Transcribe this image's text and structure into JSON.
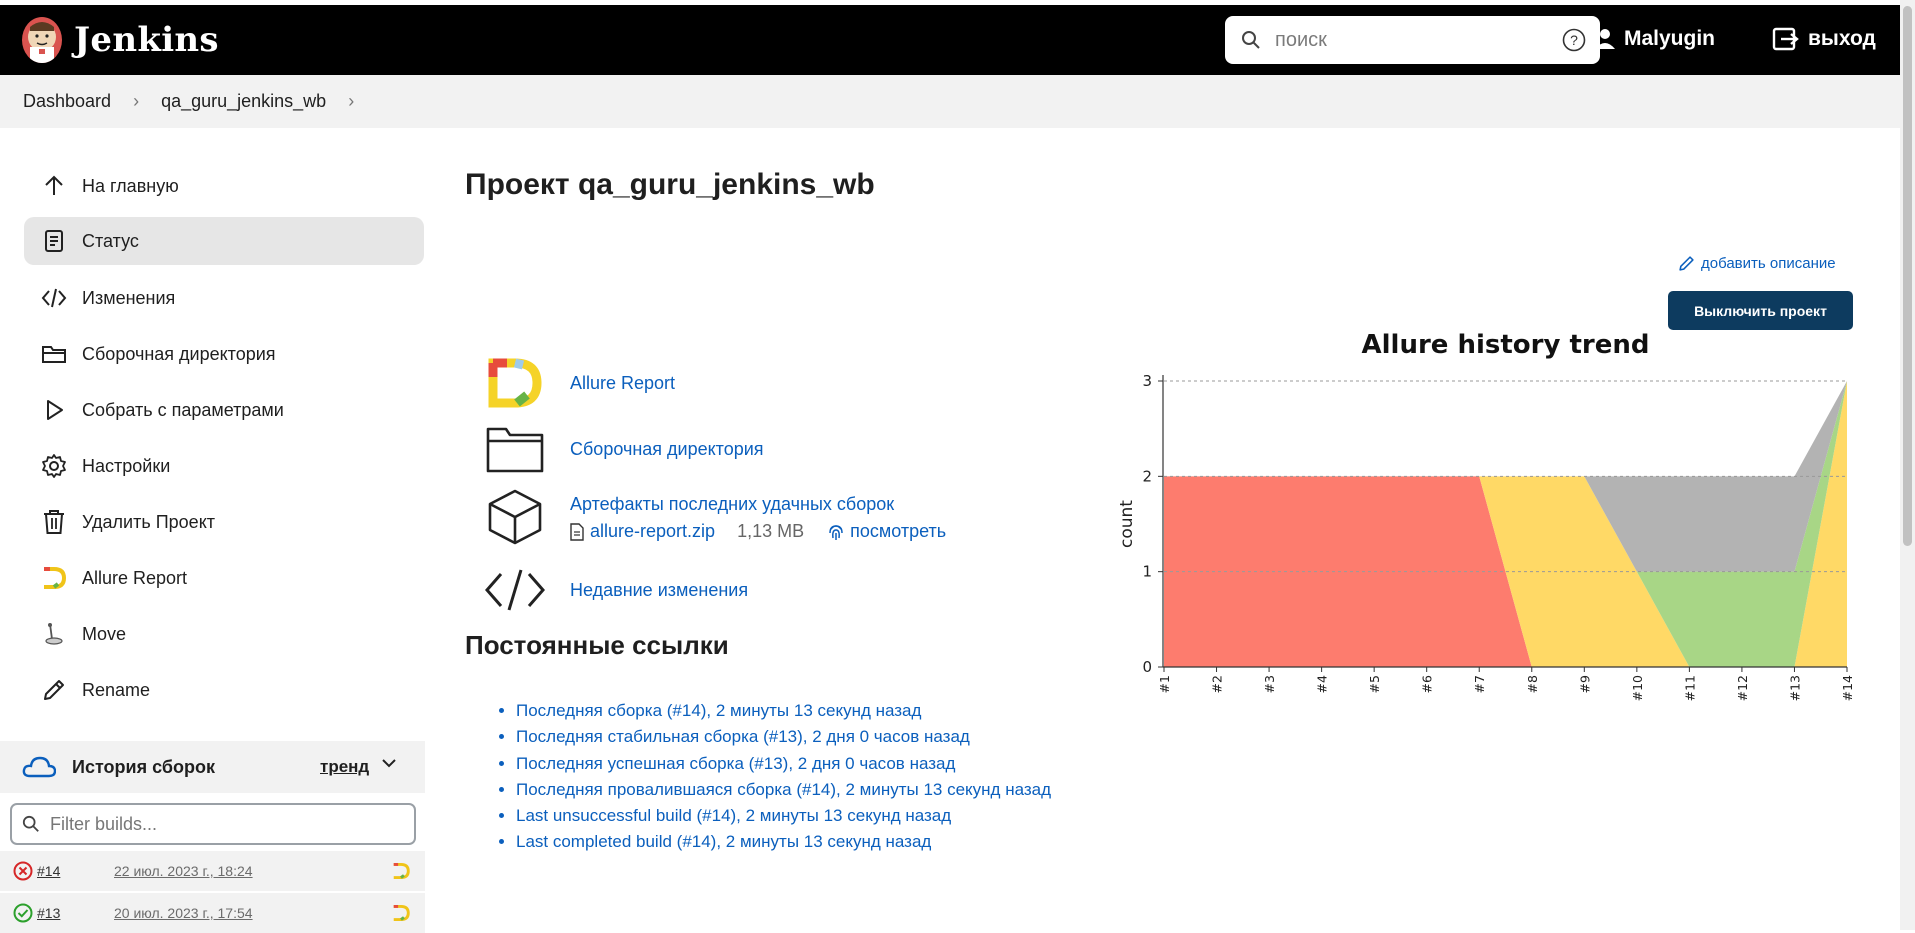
{
  "header": {
    "brand": "Jenkins",
    "search_placeholder": "поиск",
    "user": "Malyugin",
    "logout": "выход"
  },
  "breadcrumb": [
    "Dashboard",
    "qa_guru_jenkins_wb"
  ],
  "sidebar": {
    "items": [
      {
        "label": "На главную",
        "icon": "arrow-up-icon"
      },
      {
        "label": "Статус",
        "icon": "document-icon",
        "active": true
      },
      {
        "label": "Изменения",
        "icon": "code-icon"
      },
      {
        "label": "Сборочная директория",
        "icon": "folder-icon"
      },
      {
        "label": "Собрать с параметрами",
        "icon": "play-icon"
      },
      {
        "label": "Настройки",
        "icon": "gear-icon"
      },
      {
        "label": "Удалить Проект",
        "icon": "trash-icon"
      },
      {
        "label": "Allure Report",
        "icon": "allure-icon"
      },
      {
        "label": "Move",
        "icon": "move-icon"
      },
      {
        "label": "Rename",
        "icon": "pencil-icon"
      }
    ],
    "history": {
      "title": "История сборок",
      "trend": "тренд",
      "filter_placeholder": "Filter builds...",
      "builds": [
        {
          "number": "#14",
          "date": "22 июл. 2023 г., 18:24",
          "status": "failed"
        },
        {
          "number": "#13",
          "date": "20 июл. 2023 г., 17:54",
          "status": "success"
        }
      ]
    }
  },
  "main": {
    "title": "Проект qa_guru_jenkins_wb",
    "add_description": "добавить описание",
    "disable_button": "Выключить проект",
    "links": {
      "allure": "Allure Report",
      "workspace": "Сборочная директория",
      "artifacts": "Артефакты последних удачных сборок",
      "artifact_file": "allure-report.zip",
      "artifact_size": "1,13 MB",
      "artifact_view": "посмотреть",
      "changes": "Недавние изменения"
    },
    "permalinks_title": "Постоянные ссылки",
    "permalinks": [
      "Последняя сборка (#14), 2 минуты 13 секунд назад",
      "Последняя стабильная сборка (#13), 2 дня 0 часов назад",
      "Последняя успешная сборка (#13), 2 дня 0 часов назад",
      "Последняя провалившаяся сборка (#14), 2 минуты 13 секунд назад",
      "Last unsuccessful build (#14), 2 минуты 13 секунд назад",
      "Last completed build (#14), 2 минуты 13 секунд назад"
    ]
  },
  "chart_data": {
    "type": "area",
    "title": "Allure history trend",
    "xlabel": "",
    "ylabel": "count",
    "x": [
      "#1",
      "#2",
      "#3",
      "#4",
      "#5",
      "#6",
      "#7",
      "#8",
      "#9",
      "#10",
      "#11",
      "#12",
      "#13",
      "#14"
    ],
    "ylim": [
      0,
      3
    ],
    "yticks": [
      0,
      1,
      2,
      3
    ],
    "series": [
      {
        "color": "#fd7c6e",
        "values": [
          2,
          2,
          2,
          2,
          2,
          2,
          2,
          0,
          0,
          0,
          0,
          0,
          0,
          0
        ]
      },
      {
        "color": "#ffd966",
        "values": [
          0,
          0,
          0,
          0,
          0,
          0,
          0,
          2,
          2,
          1,
          0,
          0,
          0,
          3
        ]
      },
      {
        "color": "#a8d686",
        "values": [
          0,
          0,
          0,
          0,
          0,
          0,
          0,
          0,
          0,
          0,
          1,
          1,
          1,
          0
        ]
      },
      {
        "color": "#b3b3b3",
        "values": [
          0,
          0,
          0,
          0,
          0,
          0,
          0,
          0,
          0,
          1,
          1,
          1,
          1,
          0
        ]
      }
    ],
    "grid": true
  },
  "colors": {
    "link": "#0b5fbd",
    "header_bg": "#000000",
    "button_bg": "#0d3b5f"
  }
}
